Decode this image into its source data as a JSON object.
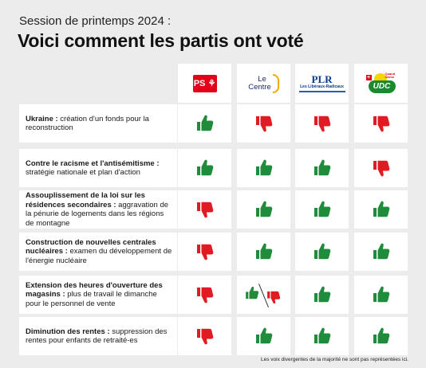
{
  "header": {
    "subtitle": "Session de printemps 2024 :",
    "title": "Voici comment les partis ont voté"
  },
  "parties": [
    {
      "id": "ps",
      "logo_text": "PS",
      "color": "#e2001a"
    },
    {
      "id": "centre",
      "logo_line1": "Le",
      "logo_line2": "Centre",
      "color": "#1a2d6b",
      "accent": "#f5a800"
    },
    {
      "id": "plr",
      "logo_main": "PLR",
      "logo_sub": "Les Libéraux-Radicaux",
      "color": "#0a3a8c"
    },
    {
      "id": "udc",
      "logo_text": "UDC",
      "logo_tag": "Quand même",
      "color": "#1a8a2e"
    }
  ],
  "colors": {
    "up": "#1e8c3a",
    "down": "#e01b24",
    "cell_bg": "#ffffff",
    "page_bg": "#ececec"
  },
  "rows": [
    {
      "bold": "Ukraine :",
      "rest": " création d'un fonds pour la reconstruction",
      "votes": [
        "up",
        "down",
        "down",
        "down"
      ]
    },
    {
      "bold": "Contre le racisme et l'antisémitisme :",
      "rest": " stratégie nationale et plan d'action",
      "votes": [
        "up",
        "up",
        "up",
        "down"
      ]
    },
    {
      "bold": "Assouplissement de la loi sur les résidences secondaires :",
      "rest": " aggravation de la pénurie de logements dans les régions de montagne",
      "votes": [
        "down",
        "up",
        "up",
        "up"
      ]
    },
    {
      "bold": "Construction de nouvelles centrales nucléaires :",
      "rest": " examen du développement de l'énergie nucléaire",
      "votes": [
        "down",
        "up",
        "up",
        "up"
      ]
    },
    {
      "bold": "Extension des heures d'ouverture des magasins :",
      "rest": " plus de travail le dimanche pour le personnel de vente",
      "votes": [
        "down",
        "split",
        "up",
        "up"
      ]
    },
    {
      "bold": "Diminution des rentes :",
      "rest": " suppression des rentes pour enfants de retraité-es",
      "votes": [
        "down",
        "up",
        "up",
        "up"
      ]
    }
  ],
  "footnote": "Les voix divergentes de la majorité ne sont pas représentées ici."
}
